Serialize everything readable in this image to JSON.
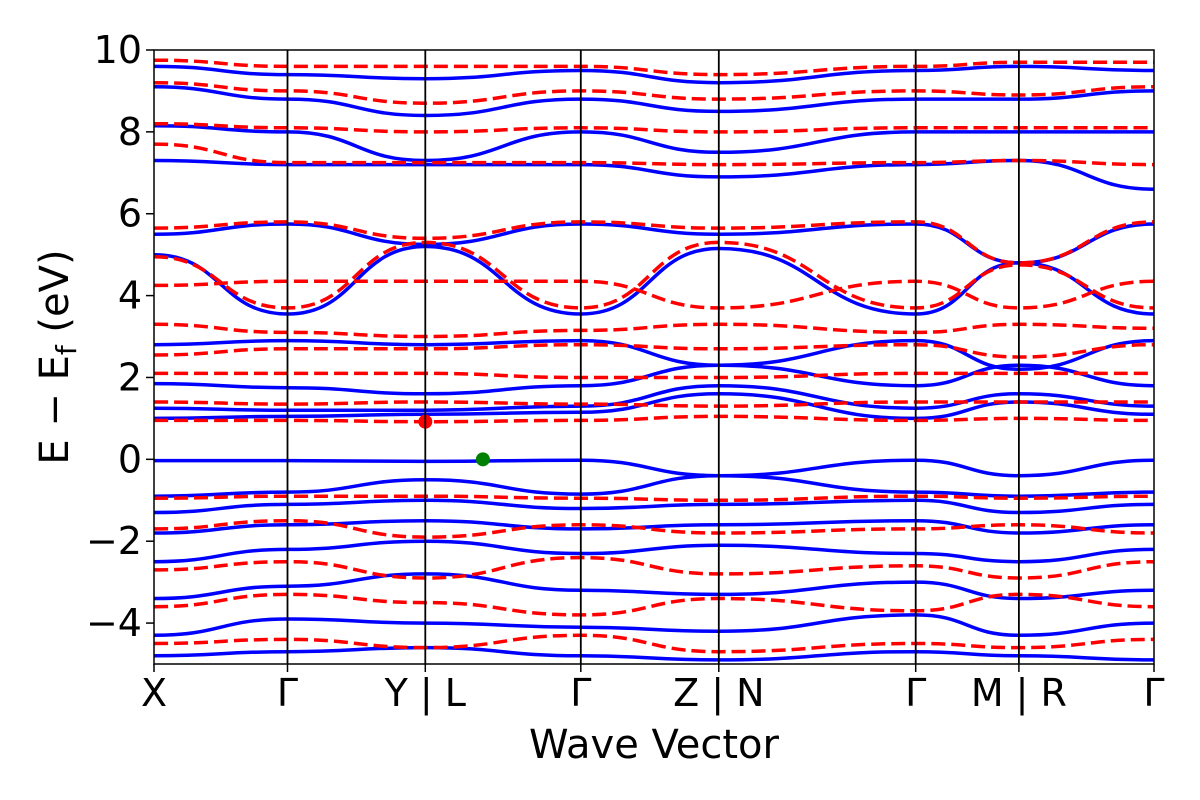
{
  "chart_data": {
    "type": "line",
    "xlabel": "Wave Vector",
    "ylabel_main": "E − E",
    "ylabel_sub": "f",
    "ylabel_unit": " (eV)",
    "ylim": [
      -5,
      10
    ],
    "yticks": [
      "−4",
      "−2",
      "0",
      "2",
      "4",
      "6",
      "8",
      "10"
    ],
    "ytick_values": [
      -4,
      -2,
      0,
      2,
      4,
      6,
      8,
      10
    ],
    "xlim": [
      0,
      1
    ],
    "kpath_labels": [
      "X",
      "Γ",
      "Y | L",
      "Γ",
      "Z | N",
      "Γ",
      "M | R",
      "Γ"
    ],
    "kpath_positions": [
      0,
      0.1335,
      0.2713,
      0.4268,
      0.5648,
      0.7617,
      0.8649,
      1.0
    ],
    "grid": false,
    "colors": {
      "series_1": "#0000ff",
      "series_2": "#ff0000",
      "vbm_marker": "#008000",
      "cbm_marker": "#ff0000"
    },
    "series": [
      {
        "style": "solid",
        "color": "#0000ff",
        "bands": [
          {
            "x": [
              0,
              0.1335,
              0.2713,
              0.4268,
              0.5648,
              0.7617,
              0.8649,
              1.0
            ],
            "y": [
              -0.03,
              -0.03,
              -0.05,
              -0.02,
              -0.4,
              -0.02,
              -0.4,
              -0.02
            ]
          },
          {
            "x": [
              0,
              0.1335,
              0.2713,
              0.4268,
              0.5648,
              0.7617,
              0.8649,
              1.0
            ],
            "y": [
              -0.9,
              -0.8,
              -0.5,
              -0.85,
              -0.4,
              -0.8,
              -0.9,
              -0.8
            ]
          },
          {
            "x": [
              0,
              0.1335,
              0.2713,
              0.4268,
              0.5648,
              0.7617,
              0.8649,
              1.0
            ],
            "y": [
              -1.3,
              -1.1,
              -1.0,
              -1.2,
              -1.1,
              -1.0,
              -1.3,
              -1.1
            ]
          },
          {
            "x": [
              0,
              0.1335,
              0.2713,
              0.4268,
              0.5648,
              0.7617,
              0.8649,
              1.0
            ],
            "y": [
              -1.8,
              -1.6,
              -1.5,
              -1.7,
              -1.6,
              -1.5,
              -1.8,
              -1.6
            ]
          },
          {
            "x": [
              0,
              0.1335,
              0.2713,
              0.4268,
              0.5648,
              0.7617,
              0.8649,
              1.0
            ],
            "y": [
              -2.5,
              -2.2,
              -2.0,
              -2.3,
              -2.1,
              -2.3,
              -2.5,
              -2.2
            ]
          },
          {
            "x": [
              0,
              0.1335,
              0.2713,
              0.4268,
              0.5648,
              0.7617,
              0.8649,
              1.0
            ],
            "y": [
              -3.4,
              -3.1,
              -2.8,
              -3.2,
              -3.3,
              -3.0,
              -3.4,
              -3.2
            ]
          },
          {
            "x": [
              0,
              0.1335,
              0.2713,
              0.4268,
              0.5648,
              0.7617,
              0.8649,
              1.0
            ],
            "y": [
              -4.3,
              -3.9,
              -4.0,
              -4.1,
              -4.2,
              -3.8,
              -4.3,
              -4.0
            ]
          },
          {
            "x": [
              0,
              0.1335,
              0.2713,
              0.4268,
              0.5648,
              0.7617,
              0.8649,
              1.0
            ],
            "y": [
              -4.8,
              -4.7,
              -4.6,
              -4.8,
              -4.9,
              -4.7,
              -4.8,
              -4.9
            ]
          },
          {
            "x": [
              0,
              0.1335,
              0.2713,
              0.4268,
              0.5648,
              0.7617,
              0.8649,
              1.0
            ],
            "y": [
              1.0,
              1.05,
              1.1,
              1.15,
              1.6,
              1.0,
              1.4,
              1.1
            ]
          },
          {
            "x": [
              0,
              0.1335,
              0.2713,
              0.4268,
              0.5648,
              0.7617,
              0.8649,
              1.0
            ],
            "y": [
              1.25,
              1.2,
              1.2,
              1.3,
              1.8,
              1.25,
              1.6,
              1.3
            ]
          },
          {
            "x": [
              0,
              0.1335,
              0.2713,
              0.4268,
              0.5648,
              0.7617,
              0.8649,
              1.0
            ],
            "y": [
              1.85,
              1.75,
              1.6,
              1.8,
              2.3,
              1.8,
              2.3,
              1.8
            ]
          },
          {
            "x": [
              0,
              0.1335,
              0.2713,
              0.4268,
              0.5648,
              0.7617,
              0.8649,
              1.0
            ],
            "y": [
              2.8,
              2.9,
              2.8,
              2.9,
              2.3,
              2.9,
              2.2,
              2.9
            ]
          },
          {
            "x": [
              0,
              0.1335,
              0.2713,
              0.4268,
              0.5648,
              0.7617,
              0.8649,
              1.0
            ],
            "y": [
              5.0,
              3.55,
              5.2,
              3.55,
              5.15,
              3.55,
              4.8,
              3.55
            ]
          },
          {
            "x": [
              0,
              0.1335,
              0.2713,
              0.4268,
              0.5648,
              0.7617,
              0.8649,
              1.0
            ],
            "y": [
              5.5,
              5.75,
              5.25,
              5.75,
              5.5,
              5.75,
              4.8,
              5.75
            ]
          },
          {
            "x": [
              0,
              0.1335,
              0.2713,
              0.4268,
              0.5648,
              0.7617,
              0.8649,
              1.0
            ],
            "y": [
              7.3,
              7.2,
              7.2,
              7.2,
              6.9,
              7.2,
              7.3,
              6.6
            ]
          },
          {
            "x": [
              0,
              0.1335,
              0.2713,
              0.4268,
              0.5648,
              0.7617,
              0.8649,
              1.0
            ],
            "y": [
              8.15,
              8.0,
              7.3,
              8.0,
              7.5,
              8.0,
              8.0,
              8.0
            ]
          },
          {
            "x": [
              0,
              0.1335,
              0.2713,
              0.4268,
              0.5648,
              0.7617,
              0.8649,
              1.0
            ],
            "y": [
              9.1,
              8.8,
              8.4,
              8.8,
              8.5,
              8.8,
              8.8,
              9.0
            ]
          },
          {
            "x": [
              0,
              0.1335,
              0.2713,
              0.4268,
              0.5648,
              0.7617,
              0.8649,
              1.0
            ],
            "y": [
              9.6,
              9.4,
              9.3,
              9.5,
              9.2,
              9.5,
              9.6,
              9.5
            ]
          }
        ]
      },
      {
        "style": "dashed",
        "color": "#ff0000",
        "bands": [
          {
            "x": [
              0,
              0.1335,
              0.2713,
              0.4268,
              0.5648,
              0.7617,
              0.8649,
              1.0
            ],
            "y": [
              -0.95,
              -0.9,
              -0.9,
              -0.95,
              -1.0,
              -0.9,
              -0.95,
              -0.9
            ]
          },
          {
            "x": [
              0,
              0.1335,
              0.2713,
              0.4268,
              0.5648,
              0.7617,
              0.8649,
              1.0
            ],
            "y": [
              -1.7,
              -1.5,
              -1.9,
              -1.6,
              -1.8,
              -1.7,
              -1.6,
              -1.8
            ]
          },
          {
            "x": [
              0,
              0.1335,
              0.2713,
              0.4268,
              0.5648,
              0.7617,
              0.8649,
              1.0
            ],
            "y": [
              -2.7,
              -2.5,
              -2.9,
              -2.4,
              -2.8,
              -2.6,
              -2.9,
              -2.5
            ]
          },
          {
            "x": [
              0,
              0.1335,
              0.2713,
              0.4268,
              0.5648,
              0.7617,
              0.8649,
              1.0
            ],
            "y": [
              -3.6,
              -3.3,
              -3.5,
              -3.8,
              -3.4,
              -3.7,
              -3.3,
              -3.6
            ]
          },
          {
            "x": [
              0,
              0.1335,
              0.2713,
              0.4268,
              0.5648,
              0.7617,
              0.8649,
              1.0
            ],
            "y": [
              -4.5,
              -4.4,
              -4.6,
              -4.3,
              -4.7,
              -4.5,
              -4.6,
              -4.4
            ]
          },
          {
            "x": [
              0,
              0.1335,
              0.2713,
              0.4268,
              0.5648,
              0.7617,
              0.8649,
              1.0
            ],
            "y": [
              0.95,
              0.95,
              0.92,
              0.95,
              1.05,
              0.95,
              1.0,
              0.95
            ]
          },
          {
            "x": [
              0,
              0.1335,
              0.2713,
              0.4268,
              0.5648,
              0.7617,
              0.8649,
              1.0
            ],
            "y": [
              1.4,
              1.35,
              1.4,
              1.35,
              1.3,
              1.4,
              1.4,
              1.4
            ]
          },
          {
            "x": [
              0,
              0.1335,
              0.2713,
              0.4268,
              0.5648,
              0.7617,
              0.8649,
              1.0
            ],
            "y": [
              2.1,
              2.1,
              2.1,
              2.0,
              2.0,
              2.1,
              2.1,
              2.1
            ]
          },
          {
            "x": [
              0,
              0.1335,
              0.2713,
              0.4268,
              0.5648,
              0.7617,
              0.8649,
              1.0
            ],
            "y": [
              2.55,
              2.7,
              2.7,
              2.8,
              2.7,
              2.8,
              2.5,
              2.8
            ]
          },
          {
            "x": [
              0,
              0.1335,
              0.2713,
              0.4268,
              0.5648,
              0.7617,
              0.8649,
              1.0
            ],
            "y": [
              3.3,
              3.1,
              3.0,
              3.15,
              3.3,
              3.1,
              3.3,
              3.2
            ]
          },
          {
            "x": [
              0,
              0.1335,
              0.2713,
              0.4268,
              0.5648,
              0.7617,
              0.8649,
              1.0
            ],
            "y": [
              4.25,
              4.35,
              4.35,
              4.35,
              3.7,
              4.35,
              3.7,
              4.35
            ]
          },
          {
            "x": [
              0,
              0.1335,
              0.2713,
              0.4268,
              0.5648,
              0.7617,
              0.8649,
              1.0
            ],
            "y": [
              4.95,
              3.7,
              5.3,
              3.7,
              5.3,
              3.7,
              4.75,
              3.7
            ]
          },
          {
            "x": [
              0,
              0.1335,
              0.2713,
              0.4268,
              0.5648,
              0.7617,
              0.8649,
              1.0
            ],
            "y": [
              5.65,
              5.8,
              5.4,
              5.8,
              5.65,
              5.8,
              4.8,
              5.8
            ]
          },
          {
            "x": [
              0,
              0.1335,
              0.2713,
              0.4268,
              0.5648,
              0.7617,
              0.8649,
              1.0
            ],
            "y": [
              7.7,
              7.25,
              7.25,
              7.25,
              7.2,
              7.25,
              7.3,
              7.2
            ]
          },
          {
            "x": [
              0,
              0.1335,
              0.2713,
              0.4268,
              0.5648,
              0.7617,
              0.8649,
              1.0
            ],
            "y": [
              8.2,
              8.1,
              8.0,
              8.1,
              8.0,
              8.1,
              8.1,
              8.1
            ]
          },
          {
            "x": [
              0,
              0.1335,
              0.2713,
              0.4268,
              0.5648,
              0.7617,
              0.8649,
              1.0
            ],
            "y": [
              9.2,
              9.0,
              8.7,
              9.0,
              8.8,
              9.0,
              8.9,
              9.1
            ]
          },
          {
            "x": [
              0,
              0.1335,
              0.2713,
              0.4268,
              0.5648,
              0.7617,
              0.8649,
              1.0
            ],
            "y": [
              9.75,
              9.6,
              9.6,
              9.6,
              9.4,
              9.6,
              9.7,
              9.7
            ]
          }
        ]
      }
    ],
    "markers": [
      {
        "name": "vbm-marker",
        "x": 0.3289,
        "y": 0.0,
        "color": "#008000"
      },
      {
        "name": "cbm-marker",
        "x": 0.2713,
        "y": 0.92,
        "color": "#ff0000"
      }
    ]
  }
}
